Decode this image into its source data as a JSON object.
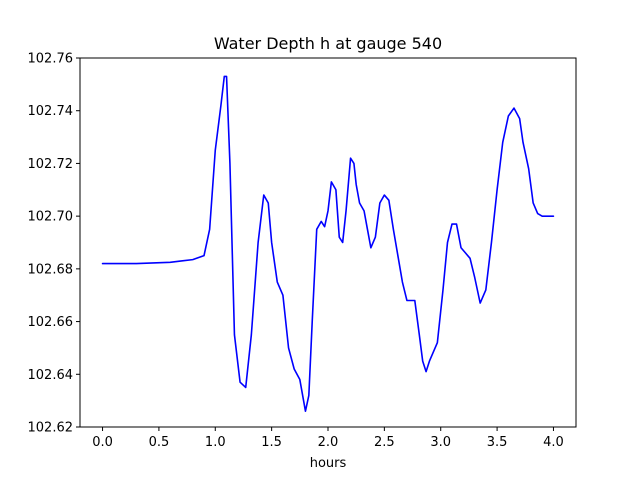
{
  "chart_data": {
    "type": "line",
    "title": "Water Depth h at gauge 540",
    "xlabel": "hours",
    "ylabel": "",
    "xlim": [
      -0.2,
      4.2
    ],
    "ylim": [
      102.62,
      102.76
    ],
    "xticks": [
      0.0,
      0.5,
      1.0,
      1.5,
      2.0,
      2.5,
      3.0,
      3.5,
      4.0
    ],
    "xtick_labels": [
      "0.0",
      "0.5",
      "1.0",
      "1.5",
      "2.0",
      "2.5",
      "3.0",
      "3.5",
      "4.0"
    ],
    "yticks": [
      102.62,
      102.64,
      102.66,
      102.68,
      102.7,
      102.72,
      102.74,
      102.76
    ],
    "ytick_labels": [
      "102.62",
      "102.64",
      "102.66",
      "102.68",
      "102.70",
      "102.72",
      "102.74",
      "102.76"
    ],
    "grid": false,
    "series": [
      {
        "color": "#0000ff",
        "x": [
          0.0,
          0.3,
          0.6,
          0.7,
          0.8,
          0.9,
          0.95,
          1.0,
          1.05,
          1.08,
          1.1,
          1.13,
          1.17,
          1.22,
          1.27,
          1.32,
          1.38,
          1.43,
          1.47,
          1.5,
          1.55,
          1.6,
          1.65,
          1.7,
          1.75,
          1.8,
          1.83,
          1.86,
          1.9,
          1.94,
          1.97,
          2.0,
          2.03,
          2.07,
          2.1,
          2.13,
          2.16,
          2.2,
          2.23,
          2.25,
          2.28,
          2.32,
          2.35,
          2.38,
          2.42,
          2.46,
          2.5,
          2.54,
          2.58,
          2.62,
          2.66,
          2.7,
          2.73,
          2.77,
          2.81,
          2.84,
          2.87,
          2.9,
          2.93,
          2.97,
          3.02,
          3.06,
          3.1,
          3.14,
          3.18,
          3.22,
          3.26,
          3.3,
          3.35,
          3.4,
          3.45,
          3.5,
          3.55,
          3.6,
          3.65,
          3.7,
          3.73,
          3.78,
          3.82,
          3.86,
          3.9,
          3.94,
          4.0
        ],
        "y": [
          102.682,
          102.682,
          102.6825,
          102.683,
          102.6835,
          102.685,
          102.695,
          102.725,
          102.742,
          102.753,
          102.753,
          102.72,
          102.655,
          102.637,
          102.635,
          102.655,
          102.69,
          102.708,
          102.705,
          102.69,
          102.675,
          102.67,
          102.65,
          102.642,
          102.638,
          102.626,
          102.632,
          102.66,
          102.695,
          102.698,
          102.696,
          102.702,
          102.713,
          102.71,
          102.692,
          102.69,
          102.702,
          102.722,
          102.72,
          102.712,
          102.705,
          102.702,
          102.695,
          102.688,
          102.692,
          102.705,
          102.708,
          102.706,
          102.695,
          102.685,
          102.675,
          102.668,
          102.668,
          102.668,
          102.655,
          102.645,
          102.641,
          102.645,
          102.648,
          102.652,
          102.672,
          102.69,
          102.697,
          102.697,
          102.688,
          102.686,
          102.684,
          102.677,
          102.667,
          102.672,
          102.69,
          102.71,
          102.728,
          102.738,
          102.741,
          102.737,
          102.728,
          102.718,
          102.705,
          102.701,
          102.7,
          102.7,
          102.7
        ]
      }
    ]
  }
}
